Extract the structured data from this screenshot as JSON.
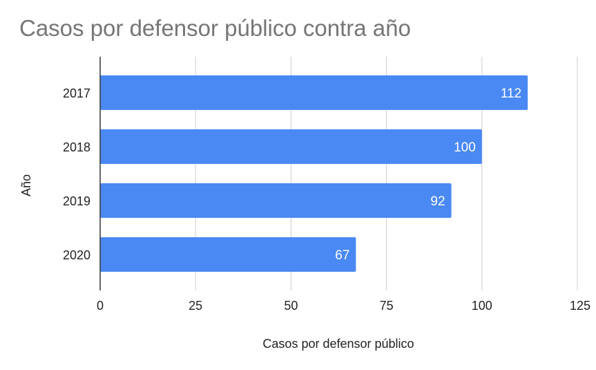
{
  "chart_data": {
    "type": "bar",
    "orientation": "horizontal",
    "title": "Casos por defensor público contra año",
    "xlabel": "Casos por defensor público",
    "ylabel": "Año",
    "categories": [
      "2017",
      "2018",
      "2019",
      "2020"
    ],
    "values": [
      112,
      100,
      92,
      67
    ],
    "data_labels": [
      "112",
      "100",
      "92",
      "67"
    ],
    "xlim": [
      0,
      125
    ],
    "xticks": [
      0,
      25,
      50,
      75,
      100,
      125
    ],
    "xtick_labels": [
      "0",
      "25",
      "50",
      "75",
      "100",
      "125"
    ],
    "grid": true,
    "bar_color": "#4a89f3",
    "grid_color": "#cccccc",
    "axis_color": "#333333"
  }
}
